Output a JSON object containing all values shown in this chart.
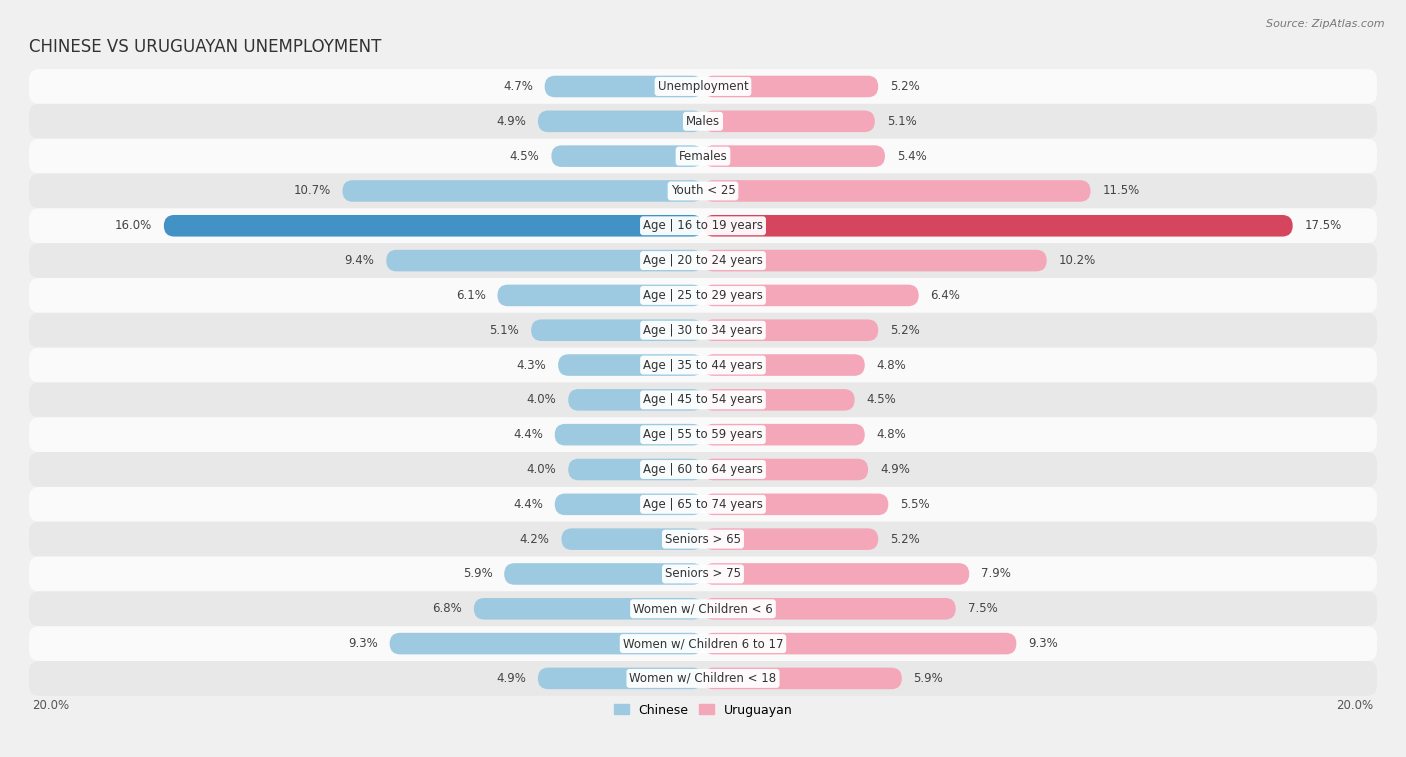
{
  "title": "CHINESE VS URUGUAYAN UNEMPLOYMENT",
  "source": "Source: ZipAtlas.com",
  "categories": [
    "Unemployment",
    "Males",
    "Females",
    "Youth < 25",
    "Age | 16 to 19 years",
    "Age | 20 to 24 years",
    "Age | 25 to 29 years",
    "Age | 30 to 34 years",
    "Age | 35 to 44 years",
    "Age | 45 to 54 years",
    "Age | 55 to 59 years",
    "Age | 60 to 64 years",
    "Age | 65 to 74 years",
    "Seniors > 65",
    "Seniors > 75",
    "Women w/ Children < 6",
    "Women w/ Children 6 to 17",
    "Women w/ Children < 18"
  ],
  "chinese": [
    4.7,
    4.9,
    4.5,
    10.7,
    16.0,
    9.4,
    6.1,
    5.1,
    4.3,
    4.0,
    4.4,
    4.0,
    4.4,
    4.2,
    5.9,
    6.8,
    9.3,
    4.9
  ],
  "uruguayan": [
    5.2,
    5.1,
    5.4,
    11.5,
    17.5,
    10.2,
    6.4,
    5.2,
    4.8,
    4.5,
    4.8,
    4.9,
    5.5,
    5.2,
    7.9,
    7.5,
    9.3,
    5.9
  ],
  "chinese_color": "#9ecae1",
  "uruguayan_color": "#f4a7b9",
  "chinese_highlight_color": "#4292c6",
  "uruguayan_highlight_color": "#d6455e",
  "background_color": "#f0f0f0",
  "row_bg_light": "#fafafa",
  "row_bg_dark": "#e8e8e8",
  "x_max": 20.0,
  "label_fontsize": 8.5,
  "value_fontsize": 8.5,
  "title_fontsize": 12
}
